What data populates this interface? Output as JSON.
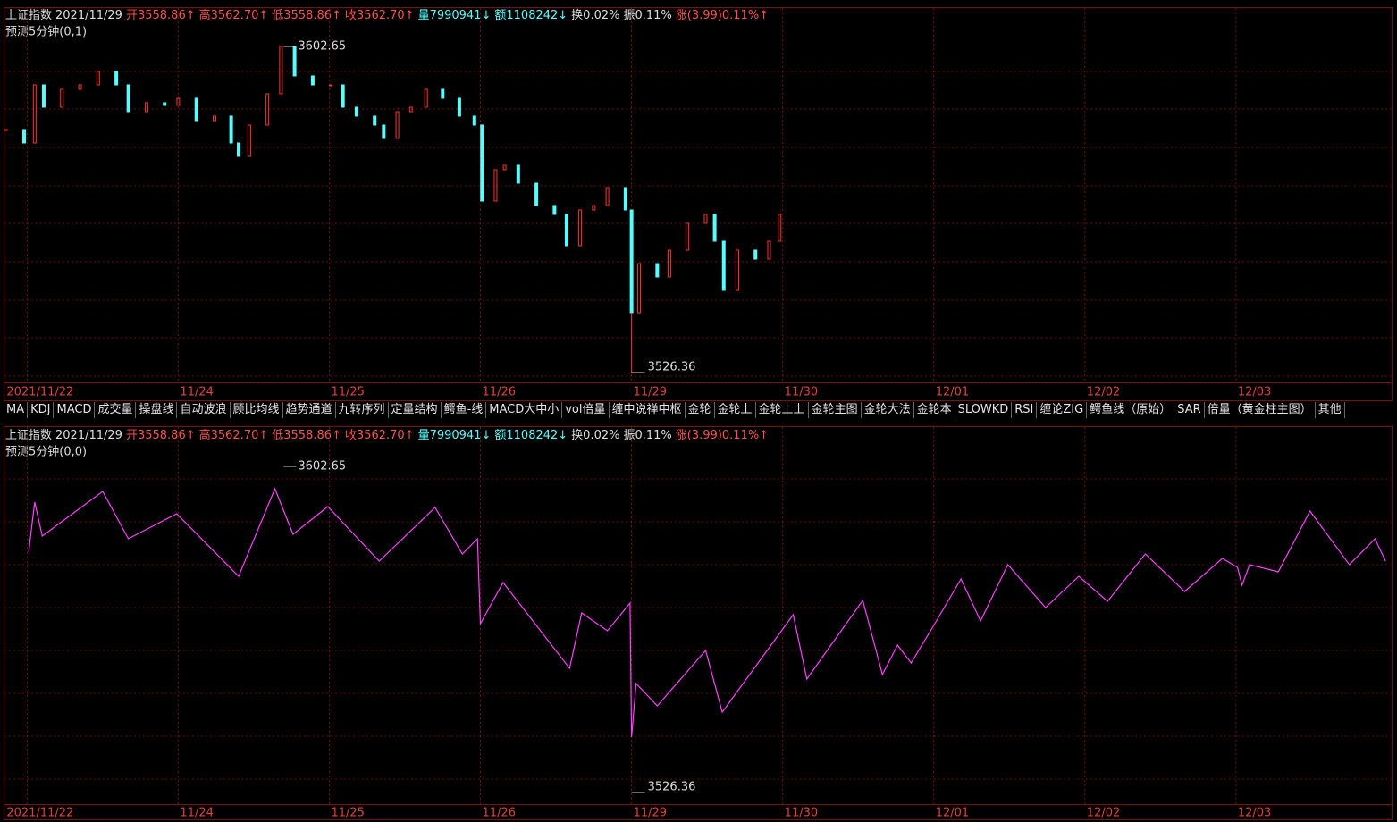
{
  "chart_data": [
    {
      "type": "candlestick",
      "quote": [
        {
          "text": "上证指数",
          "color": "#dddddd"
        },
        {
          "text": "2021/11/29",
          "color": "#dddddd"
        },
        {
          "text": "开3558.86↑",
          "color": "#ff5050"
        },
        {
          "text": "高3562.70↑",
          "color": "#ff5050"
        },
        {
          "text": "低3558.86↑",
          "color": "#ff5050"
        },
        {
          "text": "收3562.70↑",
          "color": "#ff5050"
        },
        {
          "text": "量7990941↓",
          "color": "#54ffff"
        },
        {
          "text": "额1108242↓",
          "color": "#54ffff"
        },
        {
          "text": "换0.02%",
          "color": "#dddddd"
        },
        {
          "text": "振0.11%",
          "color": "#dddddd"
        },
        {
          "text": "涨(3.99)0.11%↑",
          "color": "#ff5050"
        }
      ],
      "subtitle": "预测5分钟(0,1)",
      "up_color": "#ff3232",
      "down_color": "#54ffff",
      "x": [
        -0.14,
        -0.02,
        0.05,
        0.11,
        0.23,
        0.35,
        0.47,
        0.59,
        0.67,
        0.79,
        0.91,
        1.0,
        1.12,
        1.24,
        1.35,
        1.4,
        1.47,
        1.59,
        1.68,
        1.77,
        1.89,
        2.01,
        2.09,
        2.18,
        2.3,
        2.36,
        2.45,
        2.54,
        2.64,
        2.75,
        2.86,
        2.96,
        3.01,
        3.1,
        3.16,
        3.25,
        3.37,
        3.49,
        3.57,
        3.66,
        3.75,
        3.84,
        3.96,
        4.0,
        4.05,
        4.17,
        4.25,
        4.37,
        4.49,
        4.55,
        4.61,
        4.7,
        4.82,
        4.91,
        4.98
      ],
      "values": [
        3582.89,
        3579.7,
        3593.51,
        3588.2,
        3592.45,
        3593.51,
        3596.7,
        3593.51,
        3587.14,
        3589.26,
        3588.63,
        3590.33,
        3585.01,
        3586.08,
        3579.7,
        3576.51,
        3583.95,
        3591.39,
        3602.65,
        3595.64,
        3593.51,
        3593.51,
        3588.2,
        3586.08,
        3583.95,
        3580.76,
        3587.14,
        3588.2,
        3592.45,
        3590.33,
        3586.08,
        3583.95,
        3565.89,
        3573.33,
        3574.39,
        3570.14,
        3564.83,
        3562.7,
        3555.26,
        3563.76,
        3564.83,
        3569.08,
        3563.76,
        3539.33,
        3551.01,
        3547.83,
        3554.2,
        3560.58,
        3562.7,
        3556.33,
        3544.64,
        3554.2,
        3552.08,
        3556.33,
        3562.7
      ],
      "max": {
        "x": 1.68,
        "value": 3602.65
      },
      "min": {
        "x": 4.0,
        "value": 3526.36
      },
      "xlim": [
        -0.15,
        9.03
      ],
      "ylim": [
        3522.75,
        3609.02
      ],
      "xticks": [
        {
          "value": 0,
          "label": "2021/11/22"
        },
        {
          "value": 1,
          "label": "11/24"
        },
        {
          "value": 2,
          "label": "11/25"
        },
        {
          "value": 3,
          "label": "11/26"
        },
        {
          "value": 4,
          "label": "11/29"
        },
        {
          "value": 5,
          "label": "11/30"
        },
        {
          "value": 6,
          "label": "12/01"
        },
        {
          "value": 7,
          "label": "12/02"
        },
        {
          "value": 8,
          "label": "12/03"
        }
      ],
      "grid": true
    },
    {
      "type": "line",
      "quote": [
        {
          "text": "上证指数",
          "color": "#dddddd"
        },
        {
          "text": "2021/11/29",
          "color": "#dddddd"
        },
        {
          "text": "开3558.86↑",
          "color": "#ff5050"
        },
        {
          "text": "高3562.70↑",
          "color": "#ff5050"
        },
        {
          "text": "低3558.86↑",
          "color": "#ff5050"
        },
        {
          "text": "收3562.70↑",
          "color": "#ff5050"
        },
        {
          "text": "量7990941↓",
          "color": "#54ffff"
        },
        {
          "text": "额1108242↓",
          "color": "#54ffff"
        },
        {
          "text": "换0.02%",
          "color": "#dddddd"
        },
        {
          "text": "振0.11%",
          "color": "#dddddd"
        },
        {
          "text": "涨(3.99)0.11%↑",
          "color": "#ff5050"
        }
      ],
      "subtitle": "预测5分钟(0,0)",
      "color": "#ff40ff",
      "x": [
        0.01,
        0.05,
        0.1,
        0.5,
        0.67,
        0.99,
        1.4,
        1.64,
        1.76,
        1.99,
        2.33,
        2.7,
        2.88,
        2.98,
        3.0,
        3.15,
        3.59,
        3.67,
        3.84,
        3.99,
        4.0,
        4.03,
        4.17,
        4.49,
        4.6,
        5.07,
        5.16,
        5.53,
        5.66,
        5.76,
        5.85,
        6.0,
        6.18,
        6.31,
        6.49,
        6.74,
        6.96,
        7.15,
        7.4,
        7.66,
        7.91,
        8.01,
        8.04,
        8.09,
        8.28,
        8.49,
        8.75,
        8.92,
        8.99
      ],
      "values": [
        3582.25,
        3594.15,
        3586.08,
        3596.7,
        3585.44,
        3591.39,
        3576.51,
        3597.34,
        3586.5,
        3593.09,
        3580.13,
        3592.88,
        3581.83,
        3585.44,
        3565.25,
        3575.03,
        3554.63,
        3567.8,
        3563.55,
        3570.14,
        3538.26,
        3551.01,
        3545.7,
        3558.88,
        3544.21,
        3567.38,
        3552.08,
        3570.78,
        3553.14,
        3560.15,
        3555.9,
        3564.83,
        3575.88,
        3565.89,
        3579.28,
        3569.08,
        3576.51,
        3570.56,
        3581.83,
        3572.9,
        3580.76,
        3578.64,
        3574.39,
        3579.28,
        3577.58,
        3592.03,
        3579.28,
        3585.44,
        3580.13
      ],
      "max": {
        "x": 1.68,
        "value": 3602.65
      },
      "min": {
        "x": 4.0,
        "value": 3526.36
      },
      "xlim": [
        -0.15,
        9.03
      ],
      "ylim": [
        3522.33,
        3609.02
      ],
      "xticks": [
        {
          "value": 0,
          "label": "2021/11/22"
        },
        {
          "value": 1,
          "label": "11/24"
        },
        {
          "value": 2,
          "label": "11/25"
        },
        {
          "value": 3,
          "label": "11/26"
        },
        {
          "value": 4,
          "label": "11/29"
        },
        {
          "value": 5,
          "label": "11/30"
        },
        {
          "value": 6,
          "label": "12/01"
        },
        {
          "value": 7,
          "label": "12/02"
        },
        {
          "value": 8,
          "label": "12/03"
        }
      ],
      "grid": true
    }
  ],
  "toolbar": {
    "tabs": [
      "MA",
      "KDJ",
      "MACD",
      "成交量",
      "操盘线",
      "自动波浪",
      "顾比均线",
      "趋势通道",
      "九转序列",
      "定量结构",
      "鳄鱼-线",
      "MACD大中小",
      "vol倍量",
      "缠中说禅中枢",
      "金轮",
      "金轮上",
      "金轮上上",
      "金轮主图",
      "金轮大法",
      "金轮本",
      "SLOWKD",
      "RSI",
      "缠论ZIG",
      "鳄鱼线（原始）",
      "SAR",
      "倍量（黄金柱主图）",
      "其他"
    ]
  }
}
